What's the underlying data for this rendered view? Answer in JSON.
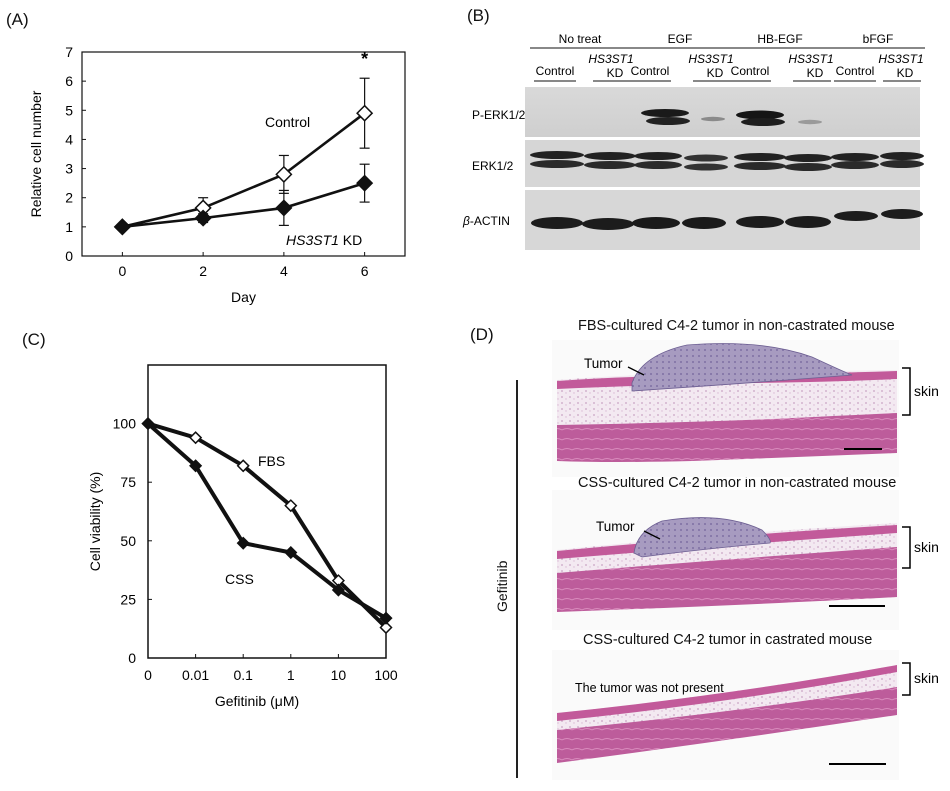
{
  "panels": {
    "a": "(A)",
    "b": "(B)",
    "c": "(C)",
    "d": "(D)"
  },
  "chart_data": [
    {
      "type": "line",
      "panel": "(A)",
      "xlabel": "Day",
      "ylabel": "Relative cell number",
      "x": [
        0,
        2,
        4,
        6
      ],
      "xticks": [
        "0",
        "2",
        "4",
        "6"
      ],
      "yticks": [
        "0",
        "1",
        "2",
        "3",
        "4",
        "5",
        "6",
        "7"
      ],
      "xlim": [
        -1,
        7
      ],
      "ylim": [
        0,
        7
      ],
      "grid": false,
      "series": [
        {
          "name": "Control",
          "marker": "open-diamond",
          "values": [
            1.0,
            1.65,
            2.8,
            4.9
          ],
          "error": [
            0.0,
            0.35,
            0.65,
            1.2
          ]
        },
        {
          "name": "HS3ST1 KD",
          "name_italic": "HS3ST1",
          "name_suffix": " KD",
          "marker": "filled-diamond",
          "values": [
            1.0,
            1.3,
            1.65,
            2.5
          ],
          "error": [
            0.0,
            0.15,
            0.6,
            0.65
          ]
        }
      ],
      "annotations": [
        {
          "text": "*",
          "x": 6
        }
      ]
    },
    {
      "type": "line",
      "panel": "(C)",
      "xlabel": "Gefitinib (μM)",
      "ylabel": "Cell viability (%)",
      "categories": [
        "0",
        "0.01",
        "0.1",
        "1",
        "10",
        "100"
      ],
      "yticks": [
        "0",
        "25",
        "50",
        "75",
        "100"
      ],
      "ylim": [
        0,
        125
      ],
      "grid": false,
      "series": [
        {
          "name": "FBS",
          "marker": "open-diamond",
          "values": [
            100,
            94,
            82,
            65,
            33,
            13
          ]
        },
        {
          "name": "CSS",
          "marker": "filled-diamond",
          "values": [
            100,
            82,
            49,
            45,
            29,
            17
          ]
        }
      ]
    }
  ],
  "blot": {
    "groups": [
      "No treat",
      "EGF",
      "HB-EGF",
      "bFGF"
    ],
    "lane_control": "Control",
    "lane_kd_top": "HS3ST1",
    "lane_kd_bottom": "KD",
    "rows": [
      {
        "label": "P-ERK1/2"
      },
      {
        "label": "ERK1/2"
      },
      {
        "label_prefix": "β",
        "label": "-ACTIN"
      }
    ]
  },
  "histology": {
    "side_label": "Gefitinib",
    "skin_label": "skin",
    "images": [
      {
        "title": "FBS-cultured C4-2 tumor in non-castrated mouse",
        "tumor_label": "Tumor"
      },
      {
        "title": "CSS-cultured C4-2 tumor in non-castrated mouse",
        "tumor_label": "Tumor"
      },
      {
        "title": "CSS-cultured C4-2 tumor in castrated mouse",
        "note": "The tumor was not present"
      }
    ]
  }
}
